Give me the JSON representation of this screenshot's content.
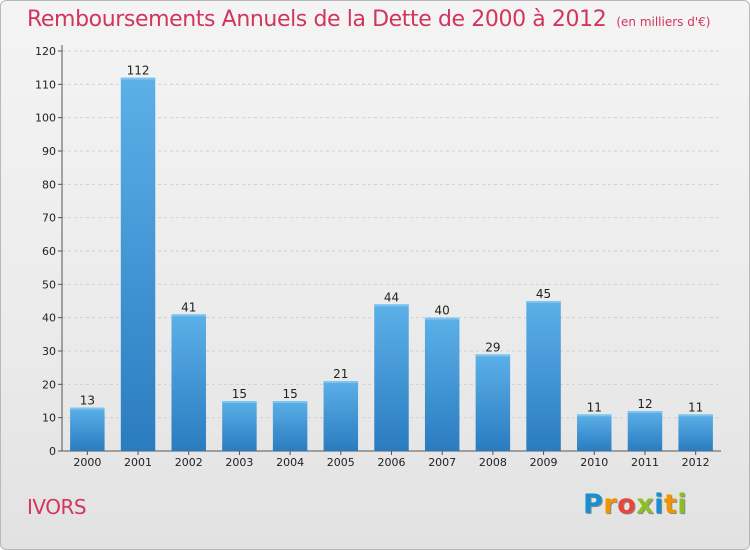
{
  "header": {
    "title": "Remboursements Annuels de la Dette de 2000 à 2012",
    "subtitle": "(en milliers d'€)"
  },
  "footer": {
    "commune": "IVORS",
    "logo": {
      "letters": [
        "P",
        "r",
        "o",
        "x",
        "i",
        "t",
        "i"
      ],
      "colors": [
        "#1a8fd0",
        "#f29400",
        "#e8463a",
        "#8cbf26",
        "#1a8fd0",
        "#f29400",
        "#8cbf26"
      ]
    }
  },
  "chart_data": {
    "type": "bar",
    "title": "Remboursements Annuels de la Dette de 2000 à 2012",
    "subtitle": "(en milliers d'€)",
    "categories": [
      "2000",
      "2001",
      "2002",
      "2003",
      "2004",
      "2005",
      "2006",
      "2007",
      "2008",
      "2009",
      "2010",
      "2011",
      "2012"
    ],
    "values": [
      13,
      112,
      41,
      15,
      15,
      21,
      44,
      40,
      29,
      45,
      11,
      12,
      11
    ],
    "value_labels": [
      "13",
      "112",
      "41",
      "15",
      "15",
      "21",
      "44",
      "40",
      "29",
      "45",
      "11",
      "12",
      "11"
    ],
    "y_ticks": [
      "0",
      "10",
      "20",
      "30",
      "40",
      "50",
      "60",
      "70",
      "80",
      "90",
      "100",
      "110",
      "120"
    ],
    "ylim": [
      0,
      120
    ],
    "xlabel": "",
    "ylabel": "",
    "grid": "horizontal-dashed",
    "colors": {
      "bar_top": "#5cb0e8",
      "bar_bottom": "#2a7cc0",
      "title": "#d2355d"
    }
  }
}
